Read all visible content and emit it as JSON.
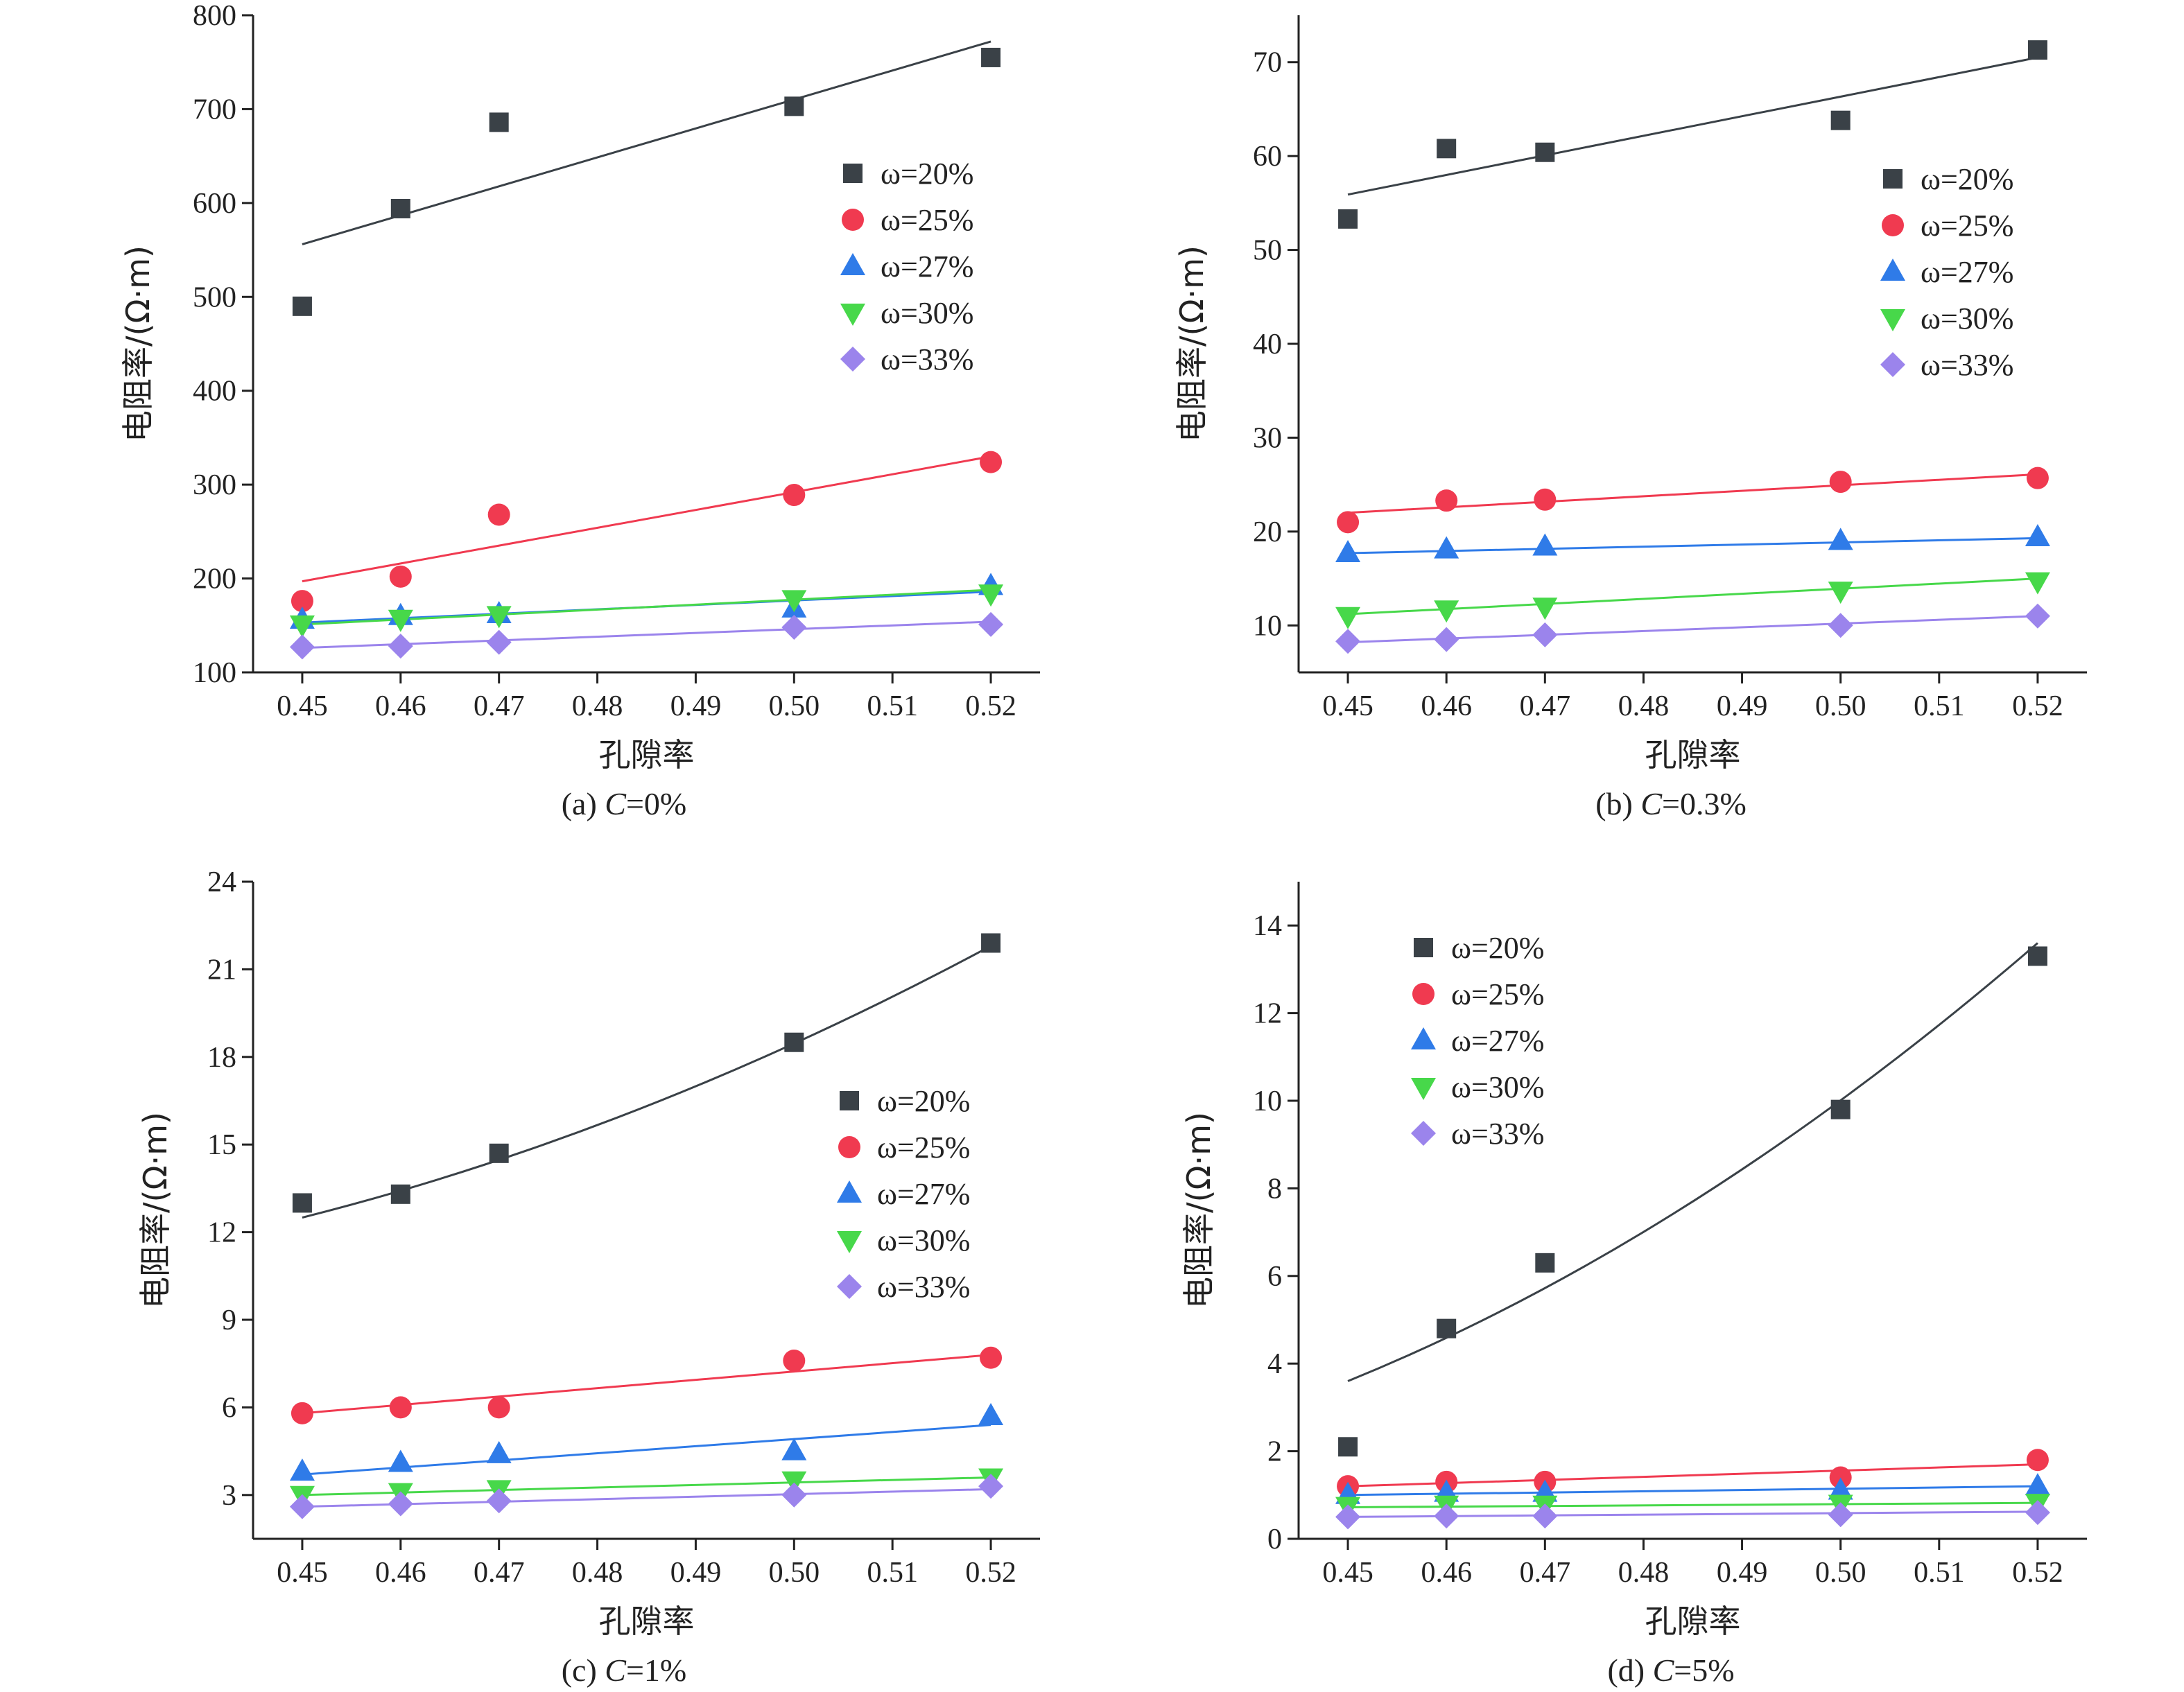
{
  "colors": {
    "ω=20%": "#3a4147",
    "ω=25%": "#f03a50",
    "ω=27%": "#2f7be8",
    "ω=30%": "#47d84a",
    "ω=33%": "#9b84ec"
  },
  "chart_data": [
    {
      "panel": "a",
      "type": "scatter",
      "caption_prefix": "(a) ",
      "caption_var": "C",
      "caption_suffix": "=0%",
      "xlabel": "孔隙率",
      "ylabel": "电阻率/(Ω·m)",
      "xlim": [
        0.445,
        0.525
      ],
      "ylim": [
        100,
        800
      ],
      "xticks": [
        "0.45",
        "0.46",
        "0.47",
        "0.48",
        "0.49",
        "0.50",
        "0.51",
        "0.52"
      ],
      "yticks": [
        "100",
        "200",
        "300",
        "400",
        "500",
        "600",
        "700",
        "800"
      ],
      "legend": "upper-right",
      "x": [
        0.45,
        0.46,
        0.47,
        0.5,
        0.52
      ],
      "series": [
        {
          "name": "ω=20%",
          "marker": "square",
          "values": [
            490,
            594,
            686,
            703,
            755
          ],
          "fit": [
            556,
            772
          ]
        },
        {
          "name": "ω=25%",
          "marker": "circle",
          "values": [
            176,
            202,
            268,
            289,
            324
          ],
          "fit": [
            197,
            330
          ]
        },
        {
          "name": "ω=27%",
          "marker": "triangle-up",
          "values": [
            156,
            160,
            162,
            168,
            192
          ],
          "fit": [
            153,
            186
          ]
        },
        {
          "name": "ω=30%",
          "marker": "triangle-down",
          "values": [
            151,
            157,
            161,
            178,
            184
          ],
          "fit": [
            151,
            188
          ]
        },
        {
          "name": "ω=33%",
          "marker": "diamond",
          "values": [
            127,
            128,
            132,
            148,
            151
          ],
          "fit": [
            126,
            154
          ]
        }
      ]
    },
    {
      "panel": "b",
      "type": "scatter",
      "caption_prefix": "(b) ",
      "caption_var": "C",
      "caption_suffix": "=0.3%",
      "xlabel": "孔隙率",
      "ylabel": "电阻率/(Ω·m)",
      "xlim": [
        0.445,
        0.525
      ],
      "ylim": [
        5,
        75
      ],
      "xticks": [
        "0.45",
        "0.46",
        "0.47",
        "0.48",
        "0.49",
        "0.50",
        "0.51",
        "0.52"
      ],
      "yticks": [
        "10",
        "20",
        "30",
        "40",
        "50",
        "60",
        "70"
      ],
      "legend": "upper-right",
      "x": [
        0.45,
        0.46,
        0.47,
        0.5,
        0.52
      ],
      "series": [
        {
          "name": "ω=20%",
          "marker": "square",
          "values": [
            53.3,
            60.8,
            60.4,
            63.8,
            71.3
          ],
          "fit": [
            55.9,
            70.5
          ]
        },
        {
          "name": "ω=25%",
          "marker": "circle",
          "values": [
            21.0,
            23.3,
            23.4,
            25.3,
            25.7
          ],
          "fit": [
            22.0,
            26.1
          ]
        },
        {
          "name": "ω=27%",
          "marker": "triangle-up",
          "values": [
            17.7,
            18.1,
            18.4,
            19.0,
            19.4
          ],
          "fit": [
            17.7,
            19.3
          ]
        },
        {
          "name": "ω=30%",
          "marker": "triangle-down",
          "values": [
            11.0,
            11.7,
            12.0,
            13.7,
            14.7
          ],
          "fit": [
            11.2,
            15.0
          ]
        },
        {
          "name": "ω=33%",
          "marker": "diamond",
          "values": [
            8.3,
            8.5,
            9.0,
            10.0,
            11.0
          ],
          "fit": [
            8.2,
            11.0
          ]
        }
      ]
    },
    {
      "panel": "c",
      "type": "scatter",
      "caption_prefix": "(c) ",
      "caption_var": "C",
      "caption_suffix": "=1%",
      "xlabel": "孔隙率",
      "ylabel": "电阻率/(Ω·m)",
      "xlim": [
        0.445,
        0.525
      ],
      "ylim": [
        1.5,
        24
      ],
      "xticks": [
        "0.45",
        "0.46",
        "0.47",
        "0.48",
        "0.49",
        "0.50",
        "0.51",
        "0.52"
      ],
      "yticks": [
        "3",
        "6",
        "9",
        "12",
        "15",
        "18",
        "21",
        "24"
      ],
      "legend": "upper-right",
      "x": [
        0.45,
        0.46,
        0.47,
        0.5,
        0.52
      ],
      "series": [
        {
          "name": "ω=20%",
          "marker": "square",
          "values": [
            13.0,
            13.3,
            14.7,
            18.5,
            21.9
          ],
          "fit": [
            12.5,
            21.8
          ],
          "curved": true
        },
        {
          "name": "ω=25%",
          "marker": "circle",
          "values": [
            5.8,
            6.0,
            6.0,
            7.6,
            7.7
          ],
          "fit": [
            5.8,
            7.8
          ]
        },
        {
          "name": "ω=27%",
          "marker": "triangle-up",
          "values": [
            3.8,
            4.1,
            4.4,
            4.5,
            5.7
          ],
          "fit": [
            3.7,
            5.4
          ]
        },
        {
          "name": "ω=30%",
          "marker": "triangle-down",
          "values": [
            3.0,
            3.1,
            3.2,
            3.5,
            3.6
          ],
          "fit": [
            3.0,
            3.6
          ]
        },
        {
          "name": "ω=33%",
          "marker": "diamond",
          "values": [
            2.6,
            2.7,
            2.8,
            3.0,
            3.3
          ],
          "fit": [
            2.6,
            3.2
          ]
        }
      ]
    },
    {
      "panel": "d",
      "type": "scatter",
      "caption_prefix": "(d) ",
      "caption_var": "C",
      "caption_suffix": "=5%",
      "xlabel": "孔隙率",
      "ylabel": "电阻率/(Ω·m)",
      "xlim": [
        0.445,
        0.525
      ],
      "ylim": [
        0,
        15
      ],
      "xticks": [
        "0.45",
        "0.46",
        "0.47",
        "0.48",
        "0.49",
        "0.50",
        "0.51",
        "0.52"
      ],
      "yticks": [
        "0",
        "2",
        "4",
        "6",
        "8",
        "10",
        "12",
        "14"
      ],
      "legend": "upper-left",
      "x": [
        0.45,
        0.46,
        0.47,
        0.5,
        0.52
      ],
      "series": [
        {
          "name": "ω=20%",
          "marker": "square",
          "values": [
            2.1,
            4.8,
            6.3,
            9.8,
            13.3
          ],
          "fit": [
            3.6,
            13.6
          ],
          "curved": true
        },
        {
          "name": "ω=25%",
          "marker": "circle",
          "values": [
            1.2,
            1.3,
            1.3,
            1.4,
            1.8
          ],
          "fit": [
            1.2,
            1.7
          ]
        },
        {
          "name": "ω=27%",
          "marker": "triangle-up",
          "values": [
            1.0,
            1.05,
            1.05,
            1.1,
            1.2
          ],
          "fit": [
            1.0,
            1.2
          ]
        },
        {
          "name": "ω=30%",
          "marker": "triangle-down",
          "values": [
            0.75,
            0.78,
            0.78,
            0.8,
            0.82
          ],
          "fit": [
            0.72,
            0.82
          ]
        },
        {
          "name": "ω=33%",
          "marker": "diamond",
          "values": [
            0.5,
            0.52,
            0.52,
            0.55,
            0.6
          ],
          "fit": [
            0.5,
            0.62
          ]
        }
      ]
    }
  ]
}
